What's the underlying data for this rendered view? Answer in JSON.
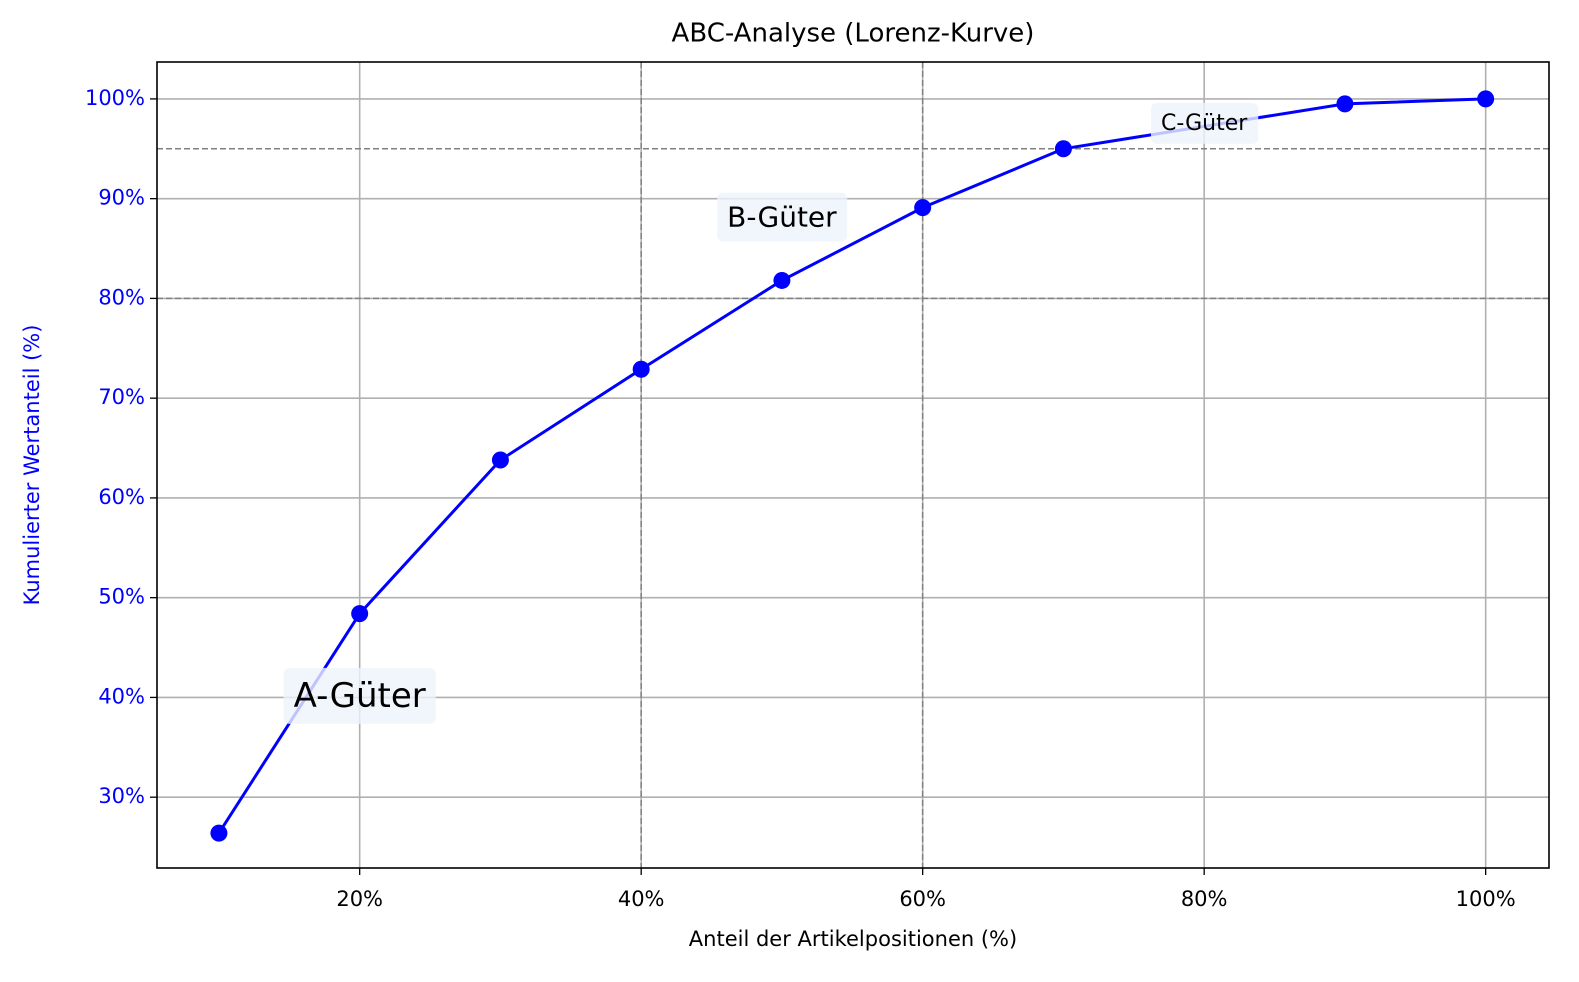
{
  "chart_data": {
    "type": "line",
    "title": "ABC-Analyse (Lorenz-Kurve)",
    "x_label": "Anteil der Artikelpositionen (%)",
    "y_label": "Kumulierter Wertanteil (%)",
    "x": [
      10,
      20,
      30,
      40,
      50,
      60,
      70,
      90,
      100
    ],
    "series": [
      {
        "color": "#0000ff",
        "values": [
          26.4,
          48.4,
          63.8,
          72.9,
          81.8,
          89.1,
          95.0,
          99.5,
          100
        ]
      }
    ],
    "xlim": [
      5.6,
      104.5
    ],
    "ylim": [
      22.9,
      103.7
    ],
    "xticks": [
      {
        "value": 20,
        "label": "20%"
      },
      {
        "value": 40,
        "label": "40%"
      },
      {
        "value": 60,
        "label": "60%"
      },
      {
        "value": 80,
        "label": "80%"
      },
      {
        "value": 100,
        "label": "100%"
      }
    ],
    "yticks": [
      {
        "value": 30,
        "label": "30%"
      },
      {
        "value": 40,
        "label": "40%"
      },
      {
        "value": 50,
        "label": "50%"
      },
      {
        "value": 60,
        "label": "60%"
      },
      {
        "value": 70,
        "label": "70%"
      },
      {
        "value": 80,
        "label": "80%"
      },
      {
        "value": 90,
        "label": "90%"
      },
      {
        "value": 100,
        "label": "100%"
      }
    ],
    "hlines": [
      80,
      95
    ],
    "vlines": [
      40,
      60
    ],
    "grid": true,
    "annotations": [
      {
        "text": "A-Güter",
        "x": 20,
        "y": 40
      },
      {
        "text": "B-Güter",
        "x": 50,
        "y": 88
      },
      {
        "text": "C-Güter",
        "x": 80,
        "y": 97.5
      }
    ]
  }
}
